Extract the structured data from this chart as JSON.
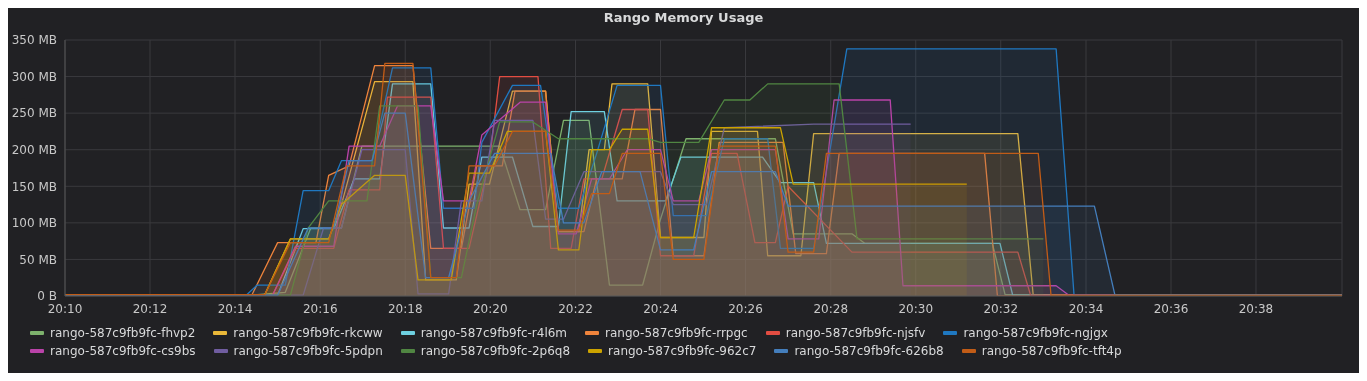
{
  "chart_data": {
    "type": "area",
    "title": "Rango Memory Usage",
    "xlim": [
      20.1667,
      20.667
    ],
    "xticks": [
      {
        "value": 20.1667,
        "label": "20:10"
      },
      {
        "value": 20.2,
        "label": "20:12"
      },
      {
        "value": 20.2333,
        "label": "20:14"
      },
      {
        "value": 20.2667,
        "label": "20:16"
      },
      {
        "value": 20.3,
        "label": "20:18"
      },
      {
        "value": 20.3333,
        "label": "20:20"
      },
      {
        "value": 20.3667,
        "label": "20:22"
      },
      {
        "value": 20.4,
        "label": "20:24"
      },
      {
        "value": 20.4333,
        "label": "20:26"
      },
      {
        "value": 20.4667,
        "label": "20:28"
      },
      {
        "value": 20.5,
        "label": "20:30"
      },
      {
        "value": 20.5333,
        "label": "20:32"
      },
      {
        "value": 20.5667,
        "label": "20:34"
      },
      {
        "value": 20.6,
        "label": "20:36"
      },
      {
        "value": 20.6333,
        "label": "20:38"
      }
    ],
    "ylim": [
      0,
      350
    ],
    "yticks": [
      {
        "value": 0,
        "label": "0 B"
      },
      {
        "value": 50,
        "label": "50 MB"
      },
      {
        "value": 100,
        "label": "100 MB"
      },
      {
        "value": 150,
        "label": "150 MB"
      },
      {
        "value": 200,
        "label": "200 MB"
      },
      {
        "value": 250,
        "label": "250 MB"
      },
      {
        "value": 300,
        "label": "300 MB"
      },
      {
        "value": 350,
        "label": "350 MB"
      }
    ],
    "grid": true,
    "legend": "bottom",
    "series": [
      {
        "name": "rango-587c9fb9fc-fhvp2",
        "color": "#7eb26d",
        "x": [
          20.167,
          20.242,
          20.253,
          20.263,
          20.275,
          20.283,
          20.337,
          20.345,
          20.355,
          20.362,
          20.372,
          20.38,
          20.393,
          20.4,
          20.41,
          20.445,
          20.452,
          20.475,
          20.48,
          20.53,
          20.535,
          20.667
        ],
        "values": [
          2,
          2,
          5,
          93,
          93,
          205,
          205,
          118,
          118,
          240,
          240,
          15,
          15,
          105,
          215,
          215,
          85,
          85,
          72,
          72,
          2,
          2
        ]
      },
      {
        "name": "rango-587c9fb9fc-rkcww",
        "color": "#eab839",
        "x": [
          20.167,
          20.245,
          20.255,
          20.27,
          20.275,
          20.288,
          20.303,
          20.308,
          20.32,
          20.325,
          20.333,
          20.342,
          20.355,
          20.36,
          20.368,
          20.372,
          20.378,
          20.381,
          20.395,
          20.4,
          20.417,
          20.42,
          20.438,
          20.442,
          20.455,
          20.46,
          20.54,
          20.546,
          20.667
        ],
        "values": [
          2,
          2,
          78,
          78,
          125,
          293,
          293,
          22,
          22,
          153,
          153,
          280,
          280,
          88,
          88,
          200,
          200,
          290,
          290,
          80,
          80,
          225,
          225,
          55,
          55,
          222,
          222,
          2,
          2
        ]
      },
      {
        "name": "rango-587c9fb9fc-r4l6m",
        "color": "#6ed0e0",
        "x": [
          20.167,
          20.25,
          20.26,
          20.272,
          20.28,
          20.29,
          20.295,
          20.31,
          20.315,
          20.325,
          20.33,
          20.342,
          20.35,
          20.36,
          20.365,
          20.378,
          20.383,
          20.402,
          20.408,
          20.44,
          20.447,
          20.46,
          20.465,
          20.533,
          20.538,
          20.667
        ],
        "values": [
          1,
          1,
          92,
          92,
          160,
          160,
          290,
          290,
          93,
          93,
          190,
          190,
          95,
          95,
          252,
          252,
          130,
          130,
          190,
          190,
          155,
          155,
          72,
          72,
          1,
          1
        ]
      },
      {
        "name": "rango-587c9fb9fc-rrpgc",
        "color": "#ef843c",
        "x": [
          20.167,
          20.24,
          20.25,
          20.265,
          20.27,
          20.278,
          20.288,
          20.303,
          20.31,
          20.322,
          20.328,
          20.338,
          20.343,
          20.355,
          20.36,
          20.37,
          20.375,
          20.385,
          20.39,
          20.4,
          20.405,
          20.417,
          20.423,
          20.448,
          20.453,
          20.465,
          20.47,
          20.527,
          20.532,
          20.667
        ],
        "values": [
          2,
          2,
          73,
          73,
          165,
          178,
          315,
          315,
          65,
          65,
          178,
          178,
          280,
          280,
          88,
          88,
          160,
          160,
          255,
          255,
          55,
          55,
          210,
          210,
          58,
          58,
          195,
          195,
          0,
          0
        ]
      },
      {
        "name": "rango-587c9fb9fc-njsfv",
        "color": "#e24d42",
        "x": [
          20.167,
          20.248,
          20.257,
          20.272,
          20.278,
          20.29,
          20.293,
          20.31,
          20.315,
          20.325,
          20.333,
          20.337,
          20.352,
          20.357,
          20.365,
          20.37,
          20.377,
          20.385,
          20.395,
          20.4,
          20.413,
          20.42,
          20.43,
          20.437,
          20.445,
          20.45,
          20.475,
          20.54,
          20.545,
          20.667
        ],
        "values": [
          1,
          1,
          65,
          65,
          145,
          145,
          272,
          272,
          65,
          65,
          185,
          300,
          300,
          65,
          65,
          160,
          160,
          255,
          255,
          55,
          55,
          195,
          195,
          73,
          73,
          150,
          60,
          60,
          1,
          1
        ]
      },
      {
        "name": "rango-587c9fb9fc-ngjgx",
        "color": "#1f78c1",
        "x": [
          20.167,
          20.238,
          20.242,
          20.253,
          20.26,
          20.27,
          20.275,
          20.287,
          20.295,
          20.31,
          20.315,
          20.327,
          20.33,
          20.342,
          20.353,
          20.36,
          20.368,
          20.375,
          20.383,
          20.4,
          20.405,
          20.418,
          20.425,
          20.442,
          20.447,
          20.46,
          20.473,
          20.555,
          20.562,
          20.667
        ],
        "values": [
          2,
          2,
          15,
          15,
          144,
          144,
          185,
          185,
          312,
          312,
          120,
          120,
          210,
          288,
          288,
          120,
          120,
          195,
          288,
          288,
          110,
          110,
          215,
          215,
          65,
          65,
          338,
          338,
          2,
          2
        ]
      },
      {
        "name": "rango-587c9fb9fc-cs9bs",
        "color": "#ba43a9",
        "x": [
          20.167,
          20.248,
          20.257,
          20.272,
          20.278,
          20.29,
          20.297,
          20.31,
          20.315,
          20.325,
          20.33,
          20.345,
          20.355,
          20.36,
          20.367,
          20.373,
          20.38,
          20.387,
          20.4,
          20.405,
          20.415,
          20.42,
          20.445,
          20.45,
          20.462,
          20.468,
          20.49,
          20.495,
          20.555,
          20.56,
          20.667
        ],
        "values": [
          1,
          1,
          68,
          68,
          205,
          205,
          260,
          260,
          130,
          130,
          220,
          265,
          265,
          85,
          85,
          160,
          160,
          200,
          200,
          130,
          130,
          200,
          200,
          78,
          78,
          268,
          268,
          14,
          14,
          1,
          1
        ]
      },
      {
        "name": "rango-587c9fb9fc-5pdpn",
        "color": "#705da0",
        "x": [
          20.167,
          20.26,
          20.268,
          20.275,
          20.283,
          20.3,
          20.305,
          20.317,
          20.322,
          20.33,
          20.335,
          20.35,
          20.355,
          20.362,
          20.37,
          20.4,
          20.405,
          20.418,
          20.425,
          20.46,
          20.498
        ],
        "values": [
          1,
          1,
          93,
          93,
          200,
          200,
          3,
          3,
          130,
          130,
          240,
          240,
          105,
          105,
          170,
          170,
          125,
          125,
          230,
          235,
          235
        ]
      },
      {
        "name": "rango-587c9fb9fc-2p6q8",
        "color": "#508642",
        "x": [
          20.167,
          20.255,
          20.262,
          20.27,
          20.285,
          20.29,
          20.305,
          20.31,
          20.322,
          20.328,
          20.337,
          20.35,
          20.36,
          20.395,
          20.4,
          20.415,
          20.425,
          20.435,
          20.442,
          20.47,
          20.477,
          20.55
        ],
        "values": [
          1,
          1,
          93,
          130,
          130,
          260,
          260,
          25,
          25,
          125,
          238,
          238,
          215,
          215,
          210,
          210,
          268,
          268,
          290,
          290,
          78,
          78
        ]
      },
      {
        "name": "rango-587c9fb9fc-962c7",
        "color": "#cca300",
        "x": [
          20.167,
          20.245,
          20.255,
          20.27,
          20.275,
          20.288,
          20.3,
          20.305,
          20.318,
          20.325,
          20.333,
          20.34,
          20.355,
          20.36,
          20.368,
          20.373,
          20.38,
          20.385,
          20.395,
          20.4,
          20.413,
          20.42,
          20.447,
          20.452,
          20.52
        ],
        "values": [
          2,
          2,
          78,
          78,
          125,
          165,
          165,
          22,
          22,
          168,
          168,
          225,
          225,
          63,
          63,
          200,
          200,
          228,
          228,
          80,
          80,
          230,
          230,
          153,
          153
        ]
      },
      {
        "name": "rango-587c9fb9fc-626b8",
        "color": "#447ebc",
        "x": [
          20.167,
          20.25,
          20.262,
          20.272,
          20.278,
          20.287,
          20.292,
          20.3,
          20.308,
          20.317,
          20.325,
          20.335,
          20.357,
          20.362,
          20.37,
          20.377,
          20.392,
          20.4,
          20.413,
          20.42,
          20.445,
          20.45,
          20.57,
          20.578,
          20.667
        ],
        "values": [
          1,
          1,
          93,
          93,
          185,
          185,
          250,
          250,
          25,
          25,
          130,
          195,
          195,
          100,
          100,
          170,
          170,
          63,
          63,
          170,
          170,
          123,
          123,
          2,
          2
        ]
      },
      {
        "name": "rango-587c9fb9fc-tft4p",
        "color": "#c15c17",
        "x": [
          20.167,
          20.245,
          20.255,
          20.27,
          20.277,
          20.288,
          20.292,
          20.303,
          20.31,
          20.32,
          20.325,
          20.335,
          20.342,
          20.355,
          20.36,
          20.368,
          20.373,
          20.38,
          20.385,
          20.4,
          20.405,
          20.417,
          20.423,
          20.445,
          20.45,
          20.46,
          20.465,
          20.548,
          20.553,
          20.667
        ],
        "values": [
          2,
          2,
          73,
          73,
          178,
          178,
          318,
          318,
          25,
          25,
          178,
          178,
          225,
          225,
          90,
          90,
          140,
          140,
          195,
          195,
          50,
          50,
          205,
          205,
          60,
          60,
          195,
          195,
          1,
          1
        ]
      }
    ]
  }
}
